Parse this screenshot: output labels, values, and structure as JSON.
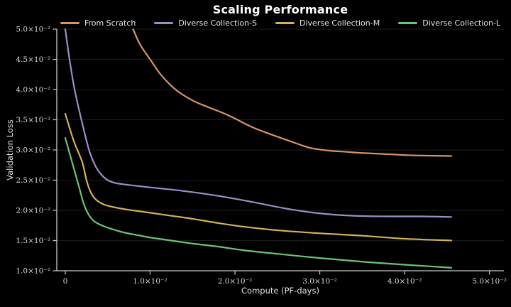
{
  "figure": {
    "background_color": "#000000",
    "title_color": "#ffffff",
    "text_color": "#e6e6e6",
    "grid_color": "#1c1c1c",
    "spine_color": "#c9c9c9"
  },
  "chart_data": {
    "type": "line",
    "title": "Scaling Performance",
    "xlabel": "Compute (PF-days)",
    "ylabel": "Validation Loss",
    "xlim": [
      -0.001,
      0.0517
    ],
    "ylim": [
      0.01,
      0.05
    ],
    "grid": "horizontal-only",
    "legend_position": "top-center-horizontal",
    "x_ticks": [
      {
        "value": 0.0,
        "label": "0"
      },
      {
        "value": 0.01,
        "label": "1.0×10⁻²"
      },
      {
        "value": 0.02,
        "label": "2.0×10⁻²"
      },
      {
        "value": 0.03,
        "label": "3.0×10⁻²"
      },
      {
        "value": 0.04,
        "label": "4.0×10⁻²"
      },
      {
        "value": 0.05,
        "label": "5.0×10⁻²"
      }
    ],
    "y_ticks": [
      {
        "value": 0.01,
        "label": "1.0×10⁻²"
      },
      {
        "value": 0.015,
        "label": "1.5×10⁻²"
      },
      {
        "value": 0.02,
        "label": "2.0×10⁻²"
      },
      {
        "value": 0.025,
        "label": "2.5×10⁻²"
      },
      {
        "value": 0.03,
        "label": "3.0×10⁻²"
      },
      {
        "value": 0.035,
        "label": "3.5×10⁻²"
      },
      {
        "value": 0.04,
        "label": "4.0×10⁻²"
      },
      {
        "value": 0.045,
        "label": "4.5×10⁻²"
      },
      {
        "value": 0.05,
        "label": "5.0×10⁻²"
      }
    ],
    "series": [
      {
        "name": "From Scratch",
        "color": "#d79467",
        "points": [
          [
            0.008,
            0.05
          ],
          [
            0.0088,
            0.0475
          ],
          [
            0.01,
            0.045
          ],
          [
            0.0113,
            0.0424
          ],
          [
            0.013,
            0.04
          ],
          [
            0.015,
            0.0382
          ],
          [
            0.017,
            0.037
          ],
          [
            0.0188,
            0.036
          ],
          [
            0.02,
            0.0352
          ],
          [
            0.022,
            0.0338
          ],
          [
            0.024,
            0.0327
          ],
          [
            0.026,
            0.0317
          ],
          [
            0.028,
            0.0307
          ],
          [
            0.029,
            0.0303
          ],
          [
            0.031,
            0.0299
          ],
          [
            0.033,
            0.0297
          ],
          [
            0.035,
            0.0295
          ],
          [
            0.038,
            0.0293
          ],
          [
            0.041,
            0.0291
          ],
          [
            0.0455,
            0.029
          ]
        ]
      },
      {
        "name": "Diverse Collection-S",
        "color": "#9d8dc8",
        "points": [
          [
            0.0,
            0.05
          ],
          [
            0.0005,
            0.045
          ],
          [
            0.0011,
            0.04
          ],
          [
            0.0019,
            0.035
          ],
          [
            0.0028,
            0.03
          ],
          [
            0.0035,
            0.0275
          ],
          [
            0.0042,
            0.026
          ],
          [
            0.005,
            0.025
          ],
          [
            0.006,
            0.0245
          ],
          [
            0.0075,
            0.0242
          ],
          [
            0.01,
            0.0238
          ],
          [
            0.014,
            0.0232
          ],
          [
            0.018,
            0.0224
          ],
          [
            0.022,
            0.0214
          ],
          [
            0.026,
            0.0203
          ],
          [
            0.03,
            0.0195
          ],
          [
            0.034,
            0.0191
          ],
          [
            0.038,
            0.019
          ],
          [
            0.042,
            0.019
          ],
          [
            0.0455,
            0.0189
          ]
        ]
      },
      {
        "name": "Diverse Collection-M",
        "color": "#d2b25a",
        "points": [
          [
            0.0,
            0.036
          ],
          [
            0.001,
            0.0315
          ],
          [
            0.002,
            0.028
          ],
          [
            0.0025,
            0.025
          ],
          [
            0.003,
            0.023
          ],
          [
            0.0036,
            0.0218
          ],
          [
            0.0045,
            0.021
          ],
          [
            0.0055,
            0.0206
          ],
          [
            0.007,
            0.0202
          ],
          [
            0.0085,
            0.0199
          ],
          [
            0.01,
            0.0196
          ],
          [
            0.012,
            0.0192
          ],
          [
            0.015,
            0.0186
          ],
          [
            0.018,
            0.0179
          ],
          [
            0.021,
            0.0173
          ],
          [
            0.025,
            0.0167
          ],
          [
            0.03,
            0.0162
          ],
          [
            0.035,
            0.0158
          ],
          [
            0.04,
            0.0153
          ],
          [
            0.0455,
            0.015
          ]
        ]
      },
      {
        "name": "Diverse Collection-L",
        "color": "#6ec376",
        "points": [
          [
            0.0,
            0.032
          ],
          [
            0.0008,
            0.028
          ],
          [
            0.0016,
            0.024
          ],
          [
            0.0022,
            0.021
          ],
          [
            0.0028,
            0.0192
          ],
          [
            0.0035,
            0.0181
          ],
          [
            0.0045,
            0.0174
          ],
          [
            0.0055,
            0.0169
          ],
          [
            0.007,
            0.0163
          ],
          [
            0.0085,
            0.0159
          ],
          [
            0.01,
            0.0155
          ],
          [
            0.012,
            0.0151
          ],
          [
            0.015,
            0.0145
          ],
          [
            0.018,
            0.014
          ],
          [
            0.021,
            0.0134
          ],
          [
            0.025,
            0.0128
          ],
          [
            0.03,
            0.0121
          ],
          [
            0.035,
            0.0115
          ],
          [
            0.04,
            0.011
          ],
          [
            0.0455,
            0.0105
          ]
        ]
      }
    ]
  }
}
